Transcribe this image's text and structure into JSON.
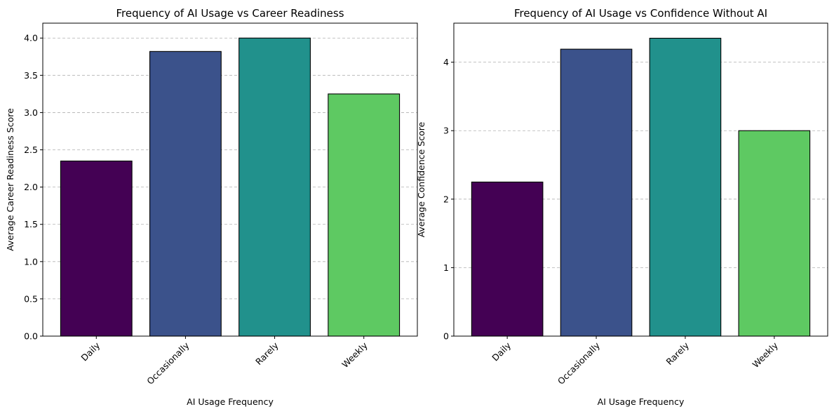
{
  "chart_data": [
    {
      "type": "bar",
      "title": "Frequency of AI Usage vs Career Readiness",
      "xlabel": "AI Usage Frequency",
      "ylabel": "Average Career Readiness Score",
      "categories": [
        "Daily",
        "Occasionally",
        "Rarely",
        "Weekly"
      ],
      "values": [
        2.35,
        3.82,
        4.0,
        3.25
      ],
      "colors": [
        "#440154",
        "#3b528b",
        "#21918c",
        "#5ec962"
      ],
      "ylim": [
        0,
        4.2
      ],
      "yticks": [
        0.0,
        0.5,
        1.0,
        1.5,
        2.0,
        2.5,
        3.0,
        3.5,
        4.0
      ],
      "ytick_labels": [
        "0.0",
        "0.5",
        "1.0",
        "1.5",
        "2.0",
        "2.5",
        "3.0",
        "3.5",
        "4.0"
      ],
      "grid": "y-dashed",
      "xtick_rotation": 45
    },
    {
      "type": "bar",
      "title": "Frequency of AI Usage vs Confidence Without AI",
      "xlabel": "AI Usage Frequency",
      "ylabel": "Average Confidence Score",
      "categories": [
        "Daily",
        "Occasionally",
        "Rarely",
        "Weekly"
      ],
      "values": [
        2.25,
        4.19,
        4.35,
        3.0
      ],
      "colors": [
        "#440154",
        "#3b528b",
        "#21918c",
        "#5ec962"
      ],
      "ylim": [
        0,
        4.57
      ],
      "yticks": [
        0,
        1,
        2,
        3,
        4
      ],
      "ytick_labels": [
        "0",
        "1",
        "2",
        "3",
        "4"
      ],
      "grid": "y-dashed",
      "xtick_rotation": 45
    }
  ]
}
